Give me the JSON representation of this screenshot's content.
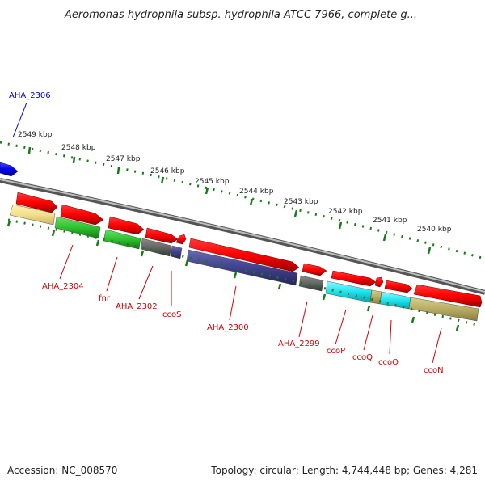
{
  "title": "Aeromonas hydrophila subsp. hydrophila ATCC 7966, complete g...",
  "footer": {
    "accession": "Accession: NC_008570",
    "topology": "Topology: circular; Length: 4,744,448 bp; Genes: 4,281"
  },
  "colors": {
    "backbone": "#808080",
    "tick": "#1a7a1a",
    "label_red": "#d00000",
    "label_blue": "#0000cc"
  },
  "ruler_labels": [
    "2549 kbp",
    "2548 kbp",
    "2547 kbp",
    "2546 kbp",
    "2545 kbp",
    "2544 kbp",
    "2543 kbp",
    "2542 kbp",
    "2541 kbp",
    "2540 kbp"
  ],
  "gene_labels": {
    "aha2306": "AHA_2306",
    "aha2304": "AHA_2304",
    "fnr": "fnr",
    "aha2302": "AHA_2302",
    "ccos": "ccoS",
    "aha2300": "AHA_2300",
    "aha2299": "AHA_2299",
    "ccop": "ccoP",
    "ccoq": "ccoQ",
    "ccoo": "ccoO",
    "ccon": "ccoN"
  }
}
